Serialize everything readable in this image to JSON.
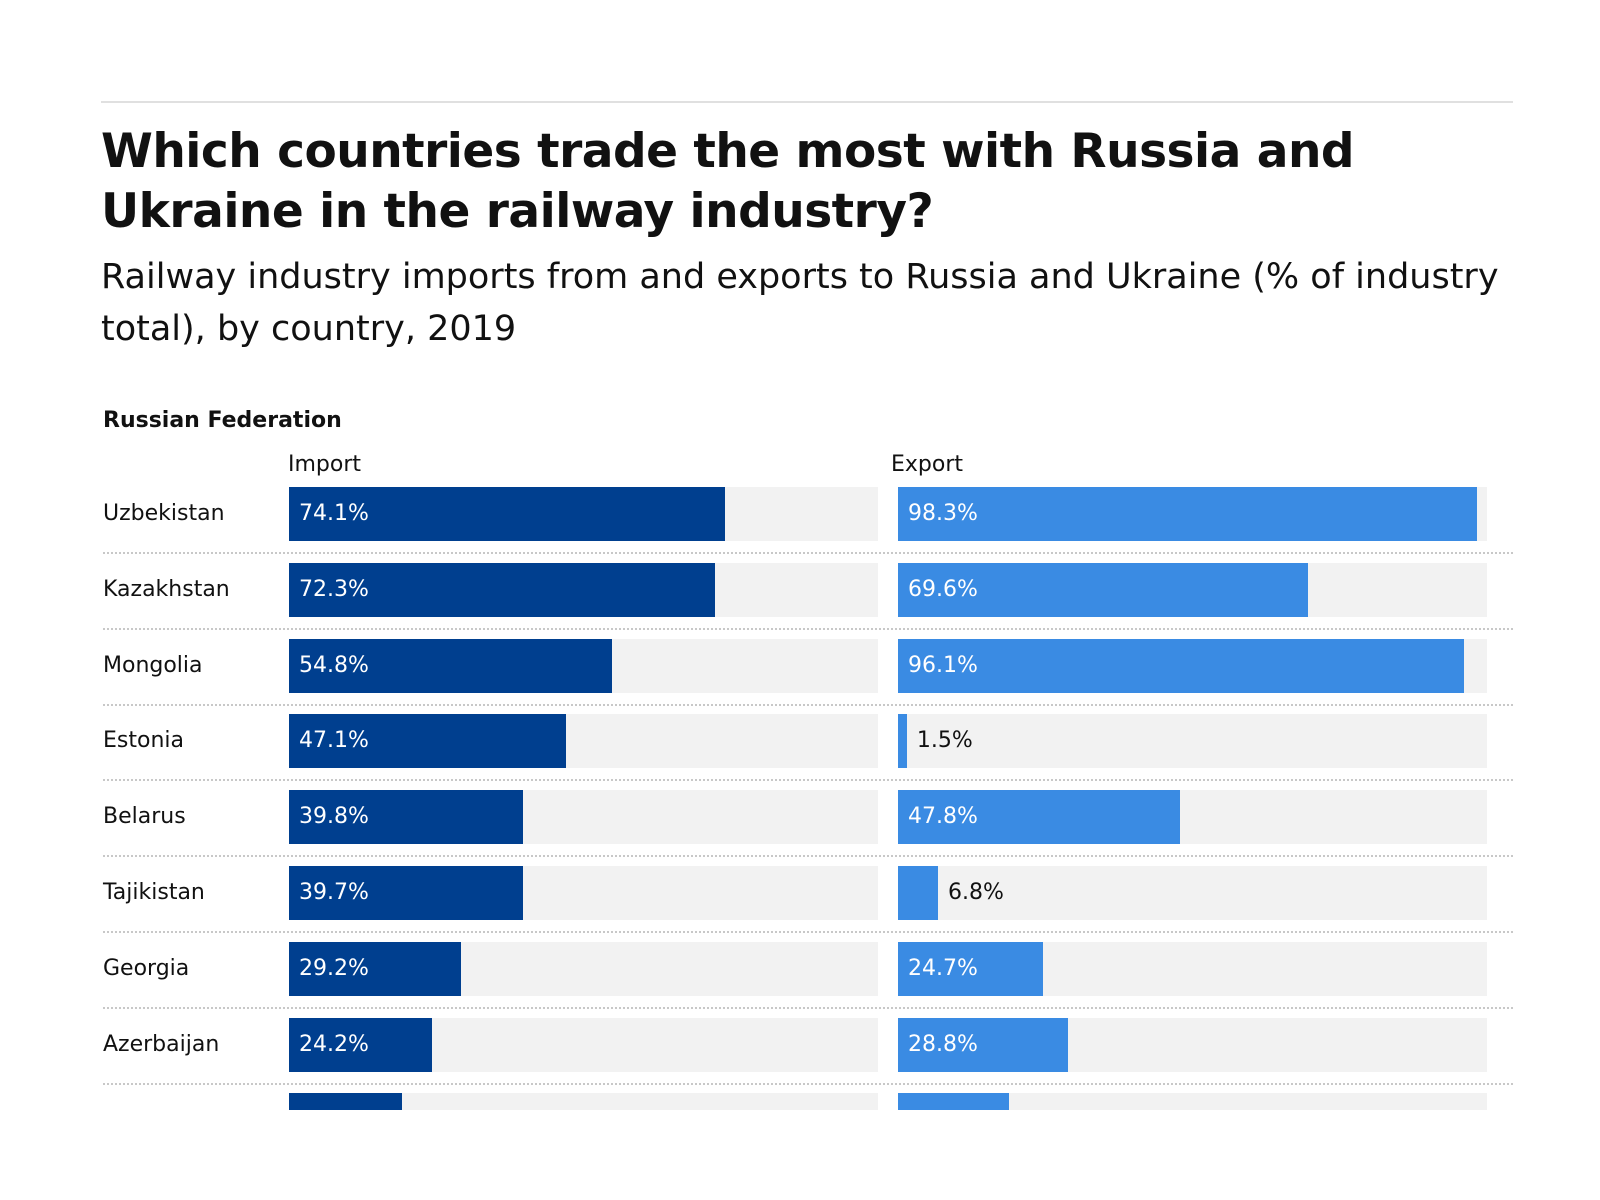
{
  "title": "Which countries trade the most with Russia and Ukraine in the railway industry?",
  "subtitle": "Railway industry imports from and exports to Russia and Ukraine (% of industry total), by country, 2019",
  "colors": {
    "import": "#003f8f",
    "export": "#3a8be3",
    "track": "#f2f2f2"
  },
  "chart_data": {
    "type": "bar",
    "orientation": "horizontal",
    "section": "Russian Federation",
    "categories": [
      "Uzbekistan",
      "Kazakhstan",
      "Mongolia",
      "Estonia",
      "Belarus",
      "Tajikistan",
      "Georgia",
      "Azerbaijan"
    ],
    "series": [
      {
        "name": "Import",
        "values": [
          74.1,
          72.3,
          54.8,
          47.1,
          39.8,
          39.7,
          29.2,
          24.2
        ],
        "labels": [
          "74.1%",
          "72.3%",
          "54.8%",
          "47.1%",
          "39.8%",
          "39.7%",
          "29.2%",
          "24.2%"
        ],
        "next_row_partial_value": 19.2
      },
      {
        "name": "Export",
        "values": [
          98.3,
          69.6,
          96.1,
          1.5,
          47.8,
          6.8,
          24.7,
          28.8
        ],
        "labels": [
          "98.3%",
          "69.6%",
          "96.1%",
          "1.5%",
          "47.8%",
          "6.8%",
          "24.7%",
          "28.8%"
        ],
        "next_row_partial_value": 18.9
      }
    ],
    "xlim": [
      0,
      100
    ],
    "grid": false,
    "legend": "none"
  }
}
